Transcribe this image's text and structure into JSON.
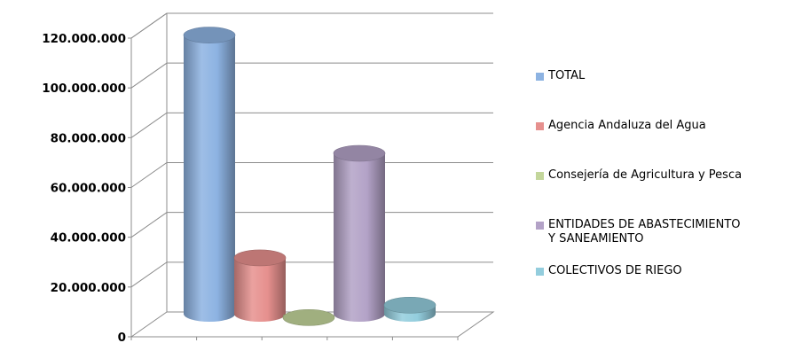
{
  "chart_data": {
    "type": "bar",
    "variant": "3d-cylinder",
    "title": "",
    "xlabel": "",
    "ylabel": "",
    "ylim": [
      0,
      120000000
    ],
    "y_ticks": [
      {
        "value": 0,
        "label": "0"
      },
      {
        "value": 20000000,
        "label": "20.000.000"
      },
      {
        "value": 40000000,
        "label": "40.000.000"
      },
      {
        "value": 60000000,
        "label": "60.000.000"
      },
      {
        "value": 80000000,
        "label": "80.000.000"
      },
      {
        "value": 100000000,
        "label": "100.000.000"
      },
      {
        "value": 120000000,
        "label": "120.000.000"
      }
    ],
    "grid": true,
    "legend_position": "right",
    "series": [
      {
        "name": "TOTAL",
        "value": 120500000,
        "color": "#8DB3E2"
      },
      {
        "name": "Agencia Andaluza del Agua",
        "value": 31000000,
        "color": "#E6908E"
      },
      {
        "name": "Consejería de Agricultura y Pesca",
        "value": 7000000,
        "color": "#C3D69B"
      },
      {
        "name": "ENTIDADES DE ABASTECIMIENTO\nY SANEAMIENTO",
        "value": 73000000,
        "color": "#B3A2C7"
      },
      {
        "name": "COLECTIVOS DE RIEGO",
        "value": 12000000,
        "color": "#93CDDD"
      }
    ]
  }
}
